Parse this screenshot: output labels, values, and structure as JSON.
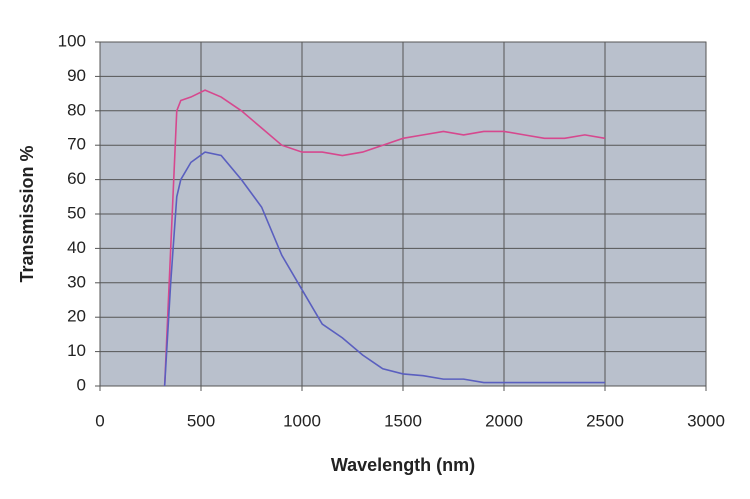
{
  "chart_data": {
    "type": "line",
    "xlabel": "Wavelength (nm)",
    "ylabel": "Transmission %",
    "x": [
      320,
      350,
      380,
      400,
      450,
      520,
      600,
      700,
      800,
      900,
      1000,
      1100,
      1200,
      1300,
      1400,
      1500,
      1600,
      1700,
      1800,
      1900,
      2000,
      2100,
      2200,
      2300,
      2400,
      2500
    ],
    "series": [
      {
        "color": "#d6488e",
        "values": [
          0,
          40,
          80,
          83,
          84,
          86,
          84,
          80,
          75,
          70,
          68,
          68,
          67,
          68,
          70,
          72,
          73,
          74,
          73,
          74,
          74,
          73,
          72,
          72,
          73,
          72
        ]
      },
      {
        "color": "#5a5fbf",
        "values": [
          0,
          30,
          55,
          60,
          65,
          68,
          67,
          60,
          52,
          38,
          28,
          18,
          14,
          9,
          5,
          3.5,
          3,
          2,
          2,
          1,
          1,
          1,
          1,
          1,
          1,
          1
        ]
      }
    ],
    "xlim": [
      0,
      3000
    ],
    "xticks": [
      0,
      500,
      1000,
      1500,
      2000,
      2500,
      3000
    ],
    "ylim": [
      0,
      100
    ],
    "yticks": [
      0,
      10,
      20,
      30,
      40,
      50,
      60,
      70,
      80,
      90,
      100
    ],
    "grid": true,
    "plot_background": "#b9c0cc"
  }
}
